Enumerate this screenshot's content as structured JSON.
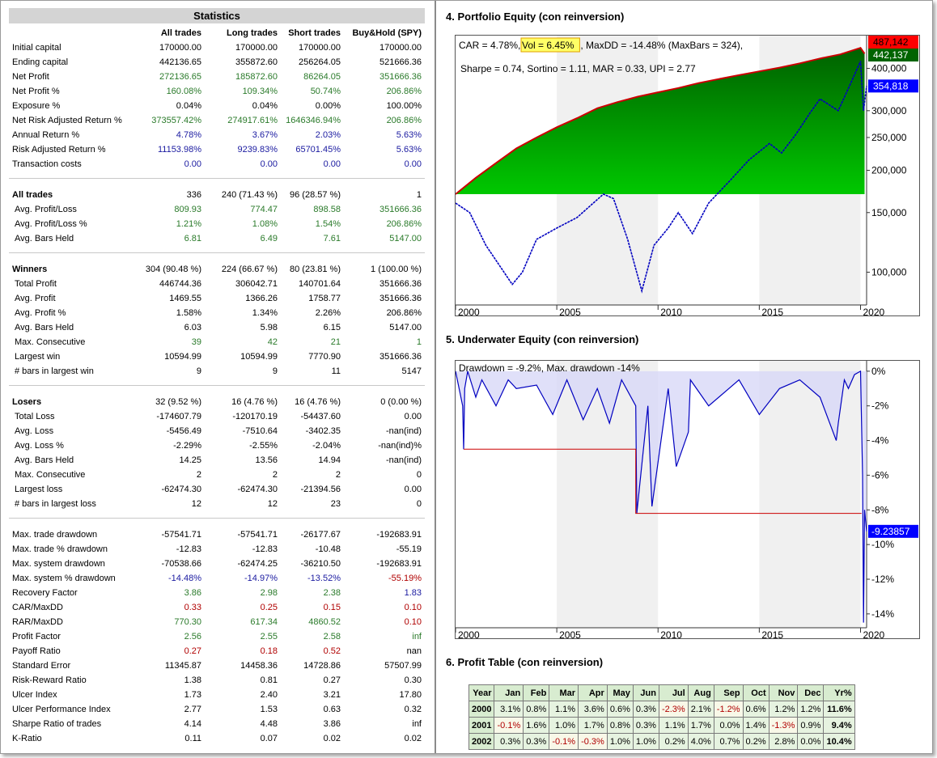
{
  "stats": {
    "title": "Statistics",
    "headers": [
      "All trades",
      "Long trades",
      "Short trades",
      "Buy&Hold (SPY)"
    ],
    "rows": [
      {
        "label": "Initial capital",
        "values": [
          "170000.00",
          "170000.00",
          "170000.00",
          "170000.00"
        ],
        "color": "black"
      },
      {
        "label": "Ending capital",
        "values": [
          "442136.65",
          "355872.60",
          "256264.05",
          "521666.36"
        ],
        "color": "black"
      },
      {
        "label": "Net Profit",
        "values": [
          "272136.65",
          "185872.60",
          "86264.05",
          "351666.36"
        ],
        "color": "green"
      },
      {
        "label": "Net Profit %",
        "values": [
          "160.08%",
          "109.34%",
          "50.74%",
          "206.86%"
        ],
        "color": "green"
      },
      {
        "label": "Exposure %",
        "values": [
          "0.04%",
          "0.04%",
          "0.00%",
          "100.00%"
        ],
        "color": "black"
      },
      {
        "label": "Net Risk Adjusted Return %",
        "values": [
          "373557.42%",
          "274917.61%",
          "1646346.94%",
          "206.86%"
        ],
        "color": "green"
      },
      {
        "label": "Annual Return %",
        "values": [
          "4.78%",
          "3.67%",
          "2.03%",
          "5.63%"
        ],
        "color": "blue"
      },
      {
        "label": "Risk Adjusted Return %",
        "values": [
          "11153.98%",
          "9239.83%",
          "65701.45%",
          "5.63%"
        ],
        "color": "blue"
      },
      {
        "label": "Transaction costs",
        "values": [
          "0.00",
          "0.00",
          "0.00",
          "0.00"
        ],
        "color": "blue"
      },
      {
        "gap": true
      },
      {
        "label": "All trades",
        "values": [
          "336",
          "240 (71.43 %)",
          "96 (28.57 %)",
          "1"
        ],
        "color": "black",
        "section": true
      },
      {
        "label": "Avg. Profit/Loss",
        "values": [
          "809.93",
          "774.47",
          "898.58",
          "351666.36"
        ],
        "color": "green",
        "sub": true
      },
      {
        "label": "Avg. Profit/Loss %",
        "values": [
          "1.21%",
          "1.08%",
          "1.54%",
          "206.86%"
        ],
        "color": "green",
        "sub": true
      },
      {
        "label": "Avg. Bars Held",
        "values": [
          "6.81",
          "6.49",
          "7.61",
          "5147.00"
        ],
        "color": "green",
        "sub": true
      },
      {
        "gap": true
      },
      {
        "label": "Winners",
        "values": [
          "304 (90.48 %)",
          "224 (66.67 %)",
          "80 (23.81 %)",
          "1 (100.00 %)"
        ],
        "color": "black",
        "section": true
      },
      {
        "label": "Total Profit",
        "values": [
          "446744.36",
          "306042.71",
          "140701.64",
          "351666.36"
        ],
        "color": "black",
        "sub": true
      },
      {
        "label": "Avg. Profit",
        "values": [
          "1469.55",
          "1366.26",
          "1758.77",
          "351666.36"
        ],
        "color": "black",
        "sub": true
      },
      {
        "label": "Avg. Profit %",
        "values": [
          "1.58%",
          "1.34%",
          "2.26%",
          "206.86%"
        ],
        "color": "black",
        "sub": true
      },
      {
        "label": "Avg. Bars Held",
        "values": [
          "6.03",
          "5.98",
          "6.15",
          "5147.00"
        ],
        "color": "black",
        "sub": true
      },
      {
        "label": "Max. Consecutive",
        "values": [
          "39",
          "42",
          "21",
          "1"
        ],
        "color": "green",
        "sub": true
      },
      {
        "label": "Largest win",
        "values": [
          "10594.99",
          "10594.99",
          "7770.90",
          "351666.36"
        ],
        "color": "black",
        "sub": true
      },
      {
        "label": "# bars in largest win",
        "values": [
          "9",
          "9",
          "11",
          "5147"
        ],
        "color": "black",
        "sub": true
      },
      {
        "gap": true
      },
      {
        "label": "Losers",
        "values": [
          "32 (9.52 %)",
          "16 (4.76 %)",
          "16 (4.76 %)",
          "0 (0.00 %)"
        ],
        "color": "black",
        "section": true
      },
      {
        "label": "Total Loss",
        "values": [
          "-174607.79",
          "-120170.19",
          "-54437.60",
          "0.00"
        ],
        "color": "black",
        "sub": true
      },
      {
        "label": "Avg. Loss",
        "values": [
          "-5456.49",
          "-7510.64",
          "-3402.35",
          "-nan(ind)"
        ],
        "color": "black",
        "sub": true
      },
      {
        "label": "Avg. Loss %",
        "values": [
          "-2.29%",
          "-2.55%",
          "-2.04%",
          "-nan(ind)%"
        ],
        "color": "black",
        "sub": true
      },
      {
        "label": "Avg. Bars Held",
        "values": [
          "14.25",
          "13.56",
          "14.94",
          "-nan(ind)"
        ],
        "color": "black",
        "sub": true
      },
      {
        "label": "Max. Consecutive",
        "values": [
          "2",
          "2",
          "2",
          "0"
        ],
        "color": "black",
        "sub": true
      },
      {
        "label": "Largest loss",
        "values": [
          "-62474.30",
          "-62474.30",
          "-21394.56",
          "0.00"
        ],
        "color": "black",
        "sub": true
      },
      {
        "label": "# bars in largest loss",
        "values": [
          "12",
          "12",
          "23",
          "0"
        ],
        "color": "black",
        "sub": true
      },
      {
        "gap": true
      },
      {
        "label": "Max. trade drawdown",
        "values": [
          "-57541.71",
          "-57541.71",
          "-26177.67",
          "-192683.91"
        ],
        "color": "black"
      },
      {
        "label": "Max. trade % drawdown",
        "values": [
          "-12.83",
          "-12.83",
          "-10.48",
          "-55.19"
        ],
        "color": "black"
      },
      {
        "label": "Max. system drawdown",
        "values": [
          "-70538.66",
          "-62474.25",
          "-36210.50",
          "-192683.91"
        ],
        "color": "black"
      },
      {
        "label": "Max. system % drawdown",
        "values": [
          "-14.48%",
          "-14.97%",
          "-13.52%",
          "-55.19%"
        ],
        "colors": [
          "blue",
          "blue",
          "blue",
          "red"
        ]
      },
      {
        "label": "Recovery Factor",
        "values": [
          "3.86",
          "2.98",
          "2.38",
          "1.83"
        ],
        "colors": [
          "green",
          "green",
          "green",
          "blue"
        ]
      },
      {
        "label": "CAR/MaxDD",
        "values": [
          "0.33",
          "0.25",
          "0.15",
          "0.10"
        ],
        "color": "red"
      },
      {
        "label": "RAR/MaxDD",
        "values": [
          "770.30",
          "617.34",
          "4860.52",
          "0.10"
        ],
        "colors": [
          "green",
          "green",
          "green",
          "red"
        ]
      },
      {
        "label": "Profit Factor",
        "values": [
          "2.56",
          "2.55",
          "2.58",
          "inf"
        ],
        "color": "green"
      },
      {
        "label": "Payoff Ratio",
        "values": [
          "0.27",
          "0.18",
          "0.52",
          "nan"
        ],
        "colors": [
          "red",
          "red",
          "red",
          "black"
        ]
      },
      {
        "label": "Standard Error",
        "values": [
          "11345.87",
          "14458.36",
          "14728.86",
          "57507.99"
        ],
        "color": "black"
      },
      {
        "label": "Risk-Reward Ratio",
        "values": [
          "1.38",
          "0.81",
          "0.27",
          "0.30"
        ],
        "color": "black"
      },
      {
        "label": "Ulcer Index",
        "values": [
          "1.73",
          "2.40",
          "3.21",
          "17.80"
        ],
        "color": "black"
      },
      {
        "label": "Ulcer Performance Index",
        "values": [
          "2.77",
          "1.53",
          "0.63",
          "0.32"
        ],
        "color": "black"
      },
      {
        "label": "Sharpe Ratio of trades",
        "values": [
          "4.14",
          "4.48",
          "3.86",
          "inf"
        ],
        "color": "black"
      },
      {
        "label": "K-Ratio",
        "values": [
          "0.11",
          "0.07",
          "0.02",
          "0.02"
        ],
        "color": "black"
      }
    ]
  },
  "equity_title": "4. Portfolio Equity (con reinversion)",
  "underwater_title": "5. Underwater Equity (con reinversion)",
  "profit_title": "6. Profit Table (con reinversion)",
  "chart_data": [
    {
      "type": "area",
      "legend_line1_prefix": "CAR = 4.78%, ",
      "legend_line1_highlight": "Vol = 6.45%",
      "legend_line1_suffix": ", MaxDD = -14.48% (MaxBars = 324),",
      "legend_line2": "Sharpe = 0.74, Sortino = 1.11, MAR = 0.33, UPI = 2.77",
      "y_scale": "log",
      "ylim": [
        80000,
        500000
      ],
      "y_ticks": [
        100000,
        150000,
        200000,
        250000,
        300000,
        400000
      ],
      "y_tick_labels": [
        "100,000",
        "150,000",
        "200,000",
        "250,000",
        "300,000",
        "400,000"
      ],
      "x_ticks": [
        2000,
        2005,
        2010,
        2015,
        2020
      ],
      "x_tick_labels": [
        "2000",
        "2005",
        "2010",
        "2015",
        "2020"
      ],
      "xlim": [
        2000,
        2020.3
      ],
      "series": [
        {
          "role": "equity",
          "color": "#00a000",
          "x": [
            2000,
            2001,
            2002,
            2003,
            2004,
            2005,
            2006,
            2007,
            2008,
            2009,
            2010,
            2011,
            2012,
            2013,
            2014,
            2015,
            2016,
            2017,
            2018,
            2019,
            2020,
            2020.2
          ],
          "y": [
            170000,
            190000,
            210000,
            232000,
            250000,
            268000,
            285000,
            305000,
            318000,
            330000,
            340000,
            350000,
            362000,
            372000,
            382000,
            392000,
            402000,
            414000,
            428000,
            440000,
            460000,
            442137
          ]
        },
        {
          "role": "buy_hold",
          "color": "#0000c0",
          "x": [
            2000,
            2000.7,
            2001.5,
            2002.8,
            2003.3,
            2004,
            2005,
            2006,
            2007.3,
            2007.8,
            2008.5,
            2009.2,
            2009.8,
            2010.5,
            2011,
            2011.7,
            2012.5,
            2013.5,
            2014.5,
            2015.5,
            2016.1,
            2016.8,
            2017.5,
            2018,
            2018.9,
            2019.5,
            2020,
            2020.15,
            2020.3
          ],
          "y": [
            160000,
            150000,
            120000,
            92000,
            100000,
            125000,
            135000,
            145000,
            170000,
            165000,
            125000,
            88000,
            120000,
            135000,
            150000,
            130000,
            160000,
            185000,
            215000,
            240000,
            225000,
            255000,
            295000,
            325000,
            300000,
            360000,
            420000,
            300000,
            354818
          ]
        }
      ],
      "labels": [
        {
          "text": "487,142",
          "value": 487142,
          "bg": "#ff0000",
          "fg": "#000000"
        },
        {
          "text": "442,137",
          "value": 442137,
          "bg": "#006400",
          "fg": "#ffffff"
        },
        {
          "text": "354,818",
          "value": 354818,
          "bg": "#0000ff",
          "fg": "#ffffff"
        }
      ]
    },
    {
      "type": "area",
      "legend": "Drawdown = -9.2%, Max. drawdown -14%",
      "ylim": [
        -14.8,
        0.6
      ],
      "y_ticks": [
        0,
        -2,
        -4,
        -6,
        -8,
        -10,
        -12,
        -14
      ],
      "y_tick_labels": [
        "0%",
        "-2%",
        "-4%",
        "-6%",
        "-8%",
        "-10%",
        "-12%",
        "-14%"
      ],
      "x_ticks": [
        2000,
        2005,
        2010,
        2015,
        2020
      ],
      "x_tick_labels": [
        "2000",
        "2005",
        "2010",
        "2015",
        "2020"
      ],
      "xlim": [
        2000,
        2020.3
      ],
      "series": [
        {
          "role": "drawdown",
          "color": "#0000c0",
          "x": [
            2000,
            2000.35,
            2000.4,
            2000.45,
            2000.6,
            2001,
            2001.3,
            2002,
            2002.6,
            2003,
            2004,
            2004.8,
            2005.5,
            2006.3,
            2007,
            2007.6,
            2008.2,
            2008.9,
            2008.95,
            2009.5,
            2009.7,
            2010.5,
            2010.9,
            2011.5,
            2011.6,
            2012.5,
            2013.5,
            2014,
            2015,
            2016,
            2017,
            2018,
            2018.8,
            2018.9,
            2019.2,
            2019.4,
            2019.7,
            2020,
            2020.1,
            2020.15,
            2020.2,
            2020.3
          ],
          "y": [
            0,
            -2,
            -4.5,
            -1,
            0,
            -1.5,
            -0.5,
            -2,
            -0.5,
            -1,
            -0.8,
            -2.5,
            -0.5,
            -2.8,
            -1,
            -3,
            -0.5,
            -2,
            -8.2,
            -2,
            -7.8,
            -1,
            -5.5,
            -3.5,
            -0.5,
            -2,
            -1,
            -0.5,
            -2.5,
            -1,
            -0.5,
            -1.5,
            -4,
            -3,
            -0.5,
            -1,
            -0.2,
            0,
            -6,
            -14.5,
            -8,
            -9.24
          ]
        },
        {
          "role": "max_drawdown",
          "color": "#cc0000",
          "x": [
            2000.4,
            2008.9,
            2008.9,
            2020.05
          ],
          "y": [
            -4.5,
            -4.5,
            -8.2,
            -8.2
          ]
        }
      ],
      "labels": [
        {
          "text": "-9.23857",
          "value": -9.23857,
          "bg": "#0000ff",
          "fg": "#ffffff"
        }
      ]
    }
  ],
  "profit_table": {
    "headers": [
      "Year",
      "Jan",
      "Feb",
      "Mar",
      "Apr",
      "May",
      "Jun",
      "Jul",
      "Aug",
      "Sep",
      "Oct",
      "Nov",
      "Dec",
      "Yr%"
    ],
    "rows": [
      {
        "year": "2000",
        "months": [
          "3.1%",
          "0.8%",
          "1.1%",
          "3.6%",
          "0.6%",
          "0.3%",
          "-2.3%",
          "2.1%",
          "-1.2%",
          "0.6%",
          "1.2%",
          "1.2%"
        ],
        "yr": "11.6%"
      },
      {
        "year": "2001",
        "months": [
          "-0.1%",
          "1.6%",
          "1.0%",
          "1.7%",
          "0.8%",
          "0.3%",
          "1.1%",
          "1.7%",
          "0.0%",
          "1.4%",
          "-1.3%",
          "0.9%"
        ],
        "yr": "9.4%"
      },
      {
        "year": "2002",
        "months": [
          "0.3%",
          "0.3%",
          "-0.1%",
          "-0.3%",
          "1.0%",
          "1.0%",
          "0.2%",
          "4.0%",
          "0.7%",
          "0.2%",
          "2.8%",
          "0.0%"
        ],
        "yr": "10.4%"
      }
    ]
  }
}
